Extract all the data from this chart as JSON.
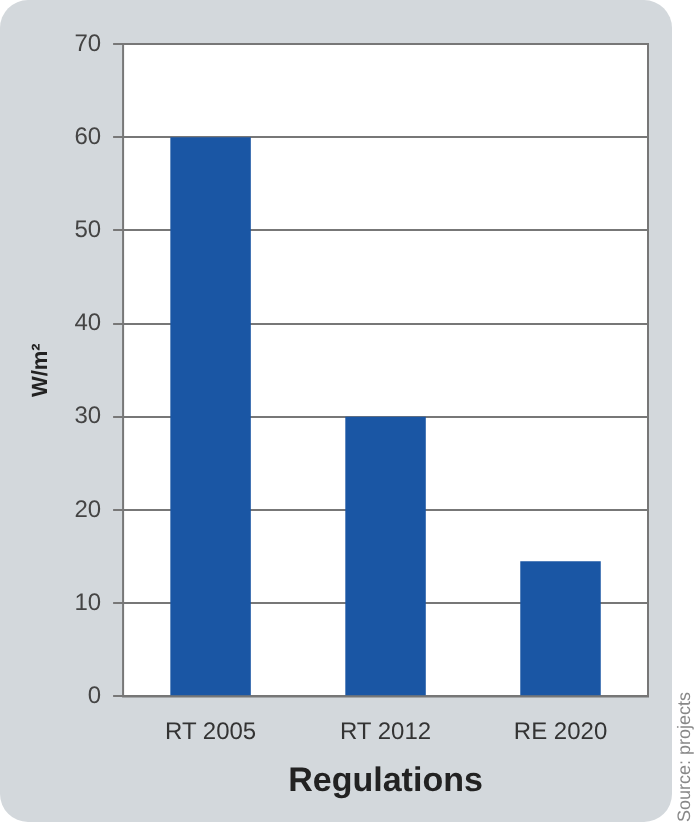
{
  "chart_data": {
    "type": "bar",
    "xlabel": "Regulations",
    "ylabel": "W/m²",
    "categories": [
      "RT 2005",
      "RT 2012",
      "RE 2020"
    ],
    "values": [
      60,
      30,
      14.5
    ],
    "color": "#1a56a4",
    "ylim": [
      0,
      70
    ],
    "yticks": [
      0,
      10,
      20,
      30,
      40,
      50,
      60,
      70
    ],
    "grid": "y",
    "legend": false,
    "annotations": [
      "Source: projects"
    ]
  }
}
